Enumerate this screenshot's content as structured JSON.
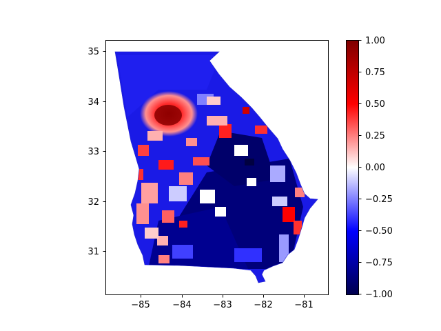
{
  "colors": {
    "background": "#ffffff",
    "axis": "#000000",
    "colormap": "seismic",
    "cmap_stops": [
      "#00004c",
      "#0000ff",
      "#ffffff",
      "#ff0000",
      "#7f0000"
    ]
  },
  "map": {
    "description_subject": "Georgia census tract choropleth",
    "xticks": [
      "−85",
      "−84",
      "−83",
      "−82",
      "−81"
    ],
    "yticks": [
      "31",
      "32",
      "33",
      "34",
      "35"
    ],
    "x_range": [
      -85.8,
      -80.5
    ],
    "y_range": [
      30.15,
      35.25
    ]
  },
  "colorbar": {
    "ticks": [
      "1.00",
      "0.75",
      "0.50",
      "0.25",
      "0.00",
      "−0.25",
      "−0.50",
      "−0.75",
      "−1.00"
    ],
    "range": [
      -1.0,
      1.0
    ]
  }
}
